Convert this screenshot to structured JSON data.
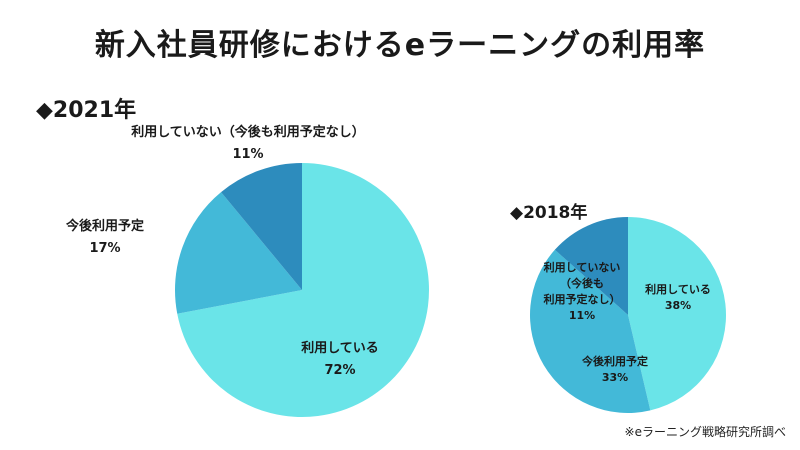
{
  "title": "新入社員研修におけるeラーニングの利用率",
  "source": "※eラーニング戦略研究所調べ",
  "colors": {
    "using": "#6ae4e8",
    "planned": "#43b9d8",
    "not_using": "#2d8cbd"
  },
  "chart_data": [
    {
      "type": "pie",
      "title": "◆2021年",
      "slices": [
        {
          "label": "利用している",
          "value": 72
        },
        {
          "label": "今後利用予定",
          "value": 17
        },
        {
          "label": "利用していない（今後も利用予定なし）",
          "value": 11
        }
      ]
    },
    {
      "type": "pie",
      "title": "◆2018年",
      "slices": [
        {
          "label": "利用している",
          "value": 38
        },
        {
          "label": "今後利用予定",
          "value": 33
        },
        {
          "label": "利用していない（今後も利用予定なし）",
          "value": 11
        }
      ]
    }
  ],
  "labels_display": {
    "pct_2021": [
      "72%",
      "17%",
      "11%"
    ],
    "pct_2018": [
      "38%",
      "33%",
      "11%"
    ],
    "small_not_using_lines": [
      "利用していない",
      "（今後も",
      "利用予定なし）"
    ]
  }
}
